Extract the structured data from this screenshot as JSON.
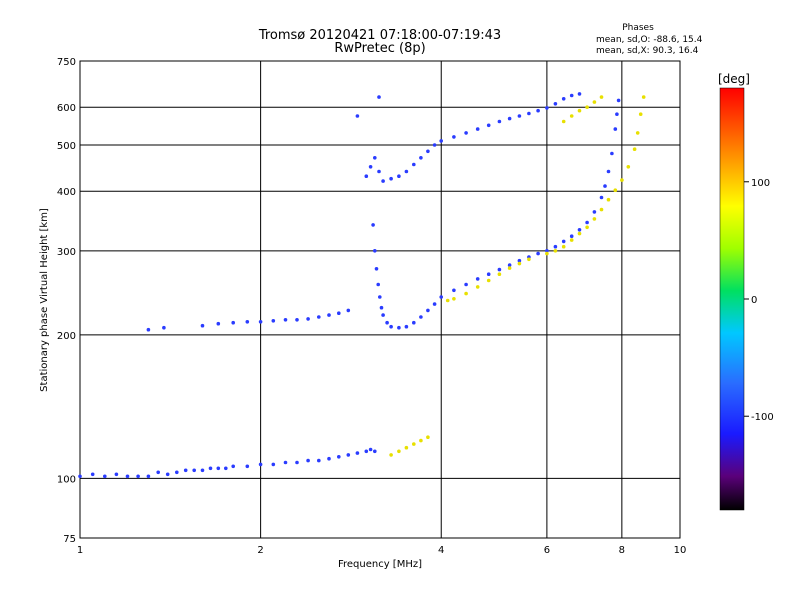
{
  "chart_data": {
    "type": "scatter",
    "title": "Tromsø 20120421 07:18:00-07:19:43",
    "subtitle": "RwPretec (8p)",
    "phases_header": "Phases",
    "phases_line1": "mean, sd,O: -88.6, 15.4",
    "phases_line2": "mean, sd,X:  90.3, 16.4",
    "xlabel": "Frequency [MHz]",
    "ylabel": "Stationary phase Virtual Height [km]",
    "x_scale": "log",
    "y_scale": "log",
    "xlim": [
      1,
      10
    ],
    "ylim": [
      75,
      750
    ],
    "x_ticks": [
      1,
      2,
      4,
      6,
      8,
      10
    ],
    "x_tick_labels": [
      "1",
      "2",
      "4",
      "6",
      "8",
      "10"
    ],
    "y_ticks": [
      75,
      100,
      200,
      300,
      400,
      500,
      600,
      750
    ],
    "y_tick_labels": [
      "75",
      "100",
      "200",
      "300",
      "400",
      "500",
      "600",
      "750"
    ],
    "grid": true,
    "colorbar": {
      "label": "[deg]",
      "range": [
        -180,
        180
      ],
      "ticks": [
        100,
        0,
        -100
      ],
      "tick_labels": [
        "100",
        "0",
        "-100"
      ]
    },
    "series": [
      {
        "mode": "O",
        "phase_deg": -100,
        "color": "#2a3cff",
        "points": [
          [
            1.0,
            101
          ],
          [
            1.05,
            102
          ],
          [
            1.1,
            101
          ],
          [
            1.15,
            102
          ],
          [
            1.2,
            101
          ],
          [
            1.25,
            101
          ],
          [
            1.3,
            101
          ],
          [
            1.35,
            103
          ],
          [
            1.4,
            102
          ],
          [
            1.45,
            103
          ],
          [
            1.5,
            104
          ],
          [
            1.55,
            104
          ],
          [
            1.6,
            104
          ],
          [
            1.65,
            105
          ],
          [
            1.7,
            105
          ],
          [
            1.75,
            105
          ],
          [
            1.8,
            106
          ],
          [
            1.9,
            106
          ],
          [
            2.0,
            107
          ],
          [
            2.1,
            107
          ],
          [
            2.2,
            108
          ],
          [
            2.3,
            108
          ],
          [
            2.4,
            109
          ],
          [
            2.5,
            109
          ],
          [
            2.6,
            110
          ],
          [
            2.7,
            111
          ],
          [
            2.8,
            112
          ],
          [
            2.9,
            113
          ],
          [
            3.0,
            114
          ],
          [
            3.05,
            115
          ],
          [
            3.1,
            114
          ],
          [
            1.3,
            205
          ],
          [
            1.38,
            207
          ],
          [
            1.6,
            209
          ],
          [
            1.7,
            211
          ],
          [
            1.8,
            212
          ],
          [
            1.9,
            213
          ],
          [
            2.0,
            213
          ],
          [
            2.1,
            214
          ],
          [
            2.2,
            215
          ],
          [
            2.3,
            215
          ],
          [
            2.4,
            216
          ],
          [
            2.5,
            218
          ],
          [
            2.6,
            220
          ],
          [
            2.7,
            222
          ],
          [
            2.8,
            225
          ],
          [
            3.08,
            340
          ],
          [
            3.1,
            300
          ],
          [
            3.12,
            275
          ],
          [
            3.14,
            255
          ],
          [
            3.16,
            240
          ],
          [
            3.18,
            228
          ],
          [
            3.2,
            220
          ],
          [
            3.25,
            212
          ],
          [
            3.3,
            208
          ],
          [
            3.4,
            207
          ],
          [
            3.5,
            208
          ],
          [
            3.6,
            212
          ],
          [
            3.7,
            218
          ],
          [
            3.8,
            225
          ],
          [
            3.9,
            232
          ],
          [
            4.0,
            240
          ],
          [
            4.2,
            248
          ],
          [
            4.4,
            255
          ],
          [
            4.6,
            262
          ],
          [
            4.8,
            268
          ],
          [
            5.0,
            274
          ],
          [
            5.2,
            280
          ],
          [
            5.4,
            286
          ],
          [
            5.6,
            291
          ],
          [
            5.8,
            296
          ],
          [
            6.0,
            300
          ],
          [
            6.2,
            306
          ],
          [
            6.4,
            314
          ],
          [
            6.6,
            322
          ],
          [
            6.8,
            332
          ],
          [
            7.0,
            344
          ],
          [
            7.2,
            362
          ],
          [
            7.4,
            388
          ],
          [
            7.5,
            410
          ],
          [
            7.6,
            440
          ],
          [
            7.7,
            480
          ],
          [
            7.8,
            540
          ],
          [
            7.85,
            580
          ],
          [
            7.9,
            620
          ],
          [
            3.0,
            430
          ],
          [
            3.05,
            450
          ],
          [
            3.1,
            470
          ],
          [
            3.15,
            440
          ],
          [
            3.2,
            420
          ],
          [
            3.3,
            425
          ],
          [
            3.4,
            430
          ],
          [
            3.5,
            440
          ],
          [
            3.6,
            455
          ],
          [
            3.7,
            470
          ],
          [
            3.8,
            485
          ],
          [
            3.9,
            500
          ],
          [
            4.0,
            510
          ],
          [
            4.2,
            520
          ],
          [
            4.4,
            530
          ],
          [
            4.6,
            540
          ],
          [
            4.8,
            550
          ],
          [
            5.0,
            560
          ],
          [
            5.2,
            568
          ],
          [
            5.4,
            575
          ],
          [
            5.6,
            582
          ],
          [
            5.8,
            590
          ],
          [
            6.0,
            598
          ],
          [
            6.2,
            610
          ],
          [
            6.4,
            625
          ],
          [
            6.6,
            635
          ],
          [
            6.8,
            640
          ],
          [
            3.15,
            630
          ],
          [
            2.9,
            575
          ]
        ]
      },
      {
        "mode": "X",
        "phase_deg": 100,
        "color": "#e8e000",
        "points": [
          [
            3.3,
            112
          ],
          [
            3.4,
            114
          ],
          [
            3.5,
            116
          ],
          [
            3.6,
            118
          ],
          [
            3.7,
            120
          ],
          [
            3.8,
            122
          ],
          [
            4.1,
            236
          ],
          [
            4.2,
            238
          ],
          [
            4.4,
            244
          ],
          [
            4.6,
            252
          ],
          [
            4.8,
            260
          ],
          [
            5.0,
            268
          ],
          [
            5.2,
            276
          ],
          [
            5.4,
            282
          ],
          [
            5.6,
            288
          ],
          [
            6.0,
            296
          ],
          [
            6.2,
            300
          ],
          [
            6.4,
            306
          ],
          [
            6.6,
            316
          ],
          [
            6.8,
            326
          ],
          [
            7.0,
            336
          ],
          [
            7.2,
            350
          ],
          [
            7.4,
            366
          ],
          [
            7.6,
            384
          ],
          [
            7.8,
            402
          ],
          [
            8.0,
            422
          ],
          [
            8.2,
            450
          ],
          [
            8.4,
            490
          ],
          [
            8.5,
            530
          ],
          [
            8.6,
            580
          ],
          [
            8.7,
            630
          ],
          [
            6.4,
            560
          ],
          [
            6.6,
            575
          ],
          [
            6.8,
            590
          ],
          [
            7.0,
            600
          ],
          [
            7.2,
            615
          ],
          [
            7.4,
            630
          ]
        ]
      }
    ]
  }
}
